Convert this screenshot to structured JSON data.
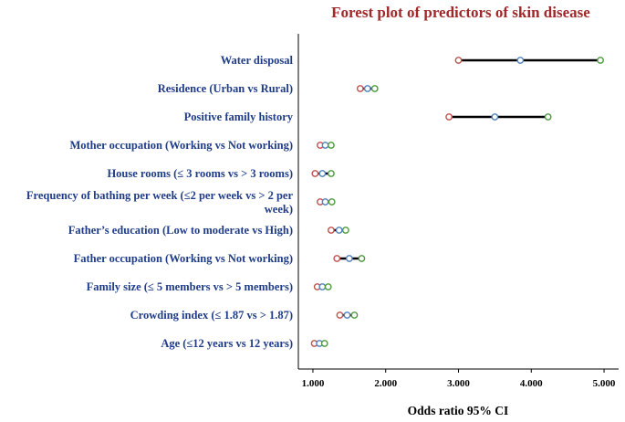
{
  "chart_data": {
    "type": "forest",
    "title": "Forest plot of predictors of skin disease",
    "xlabel": "Odds ratio 95% CI",
    "xlim": [
      0.8,
      5.2
    ],
    "xticks": [
      1.0,
      2.0,
      3.0,
      4.0,
      5.0
    ],
    "xtick_labels": [
      "1.000",
      "2.000",
      "3.000",
      "4.000",
      "5.000"
    ],
    "grid": false,
    "rows": [
      {
        "label": "Water disposal",
        "lower": 3.0,
        "or": 3.85,
        "upper": 4.95
      },
      {
        "label": "Residence (Urban vs Rural)",
        "lower": 1.65,
        "or": 1.75,
        "upper": 1.85
      },
      {
        "label": "Positive family history",
        "lower": 2.87,
        "or": 3.5,
        "upper": 4.23
      },
      {
        "label": "Mother occupation (Working vs Not working)",
        "lower": 1.1,
        "or": 1.17,
        "upper": 1.25
      },
      {
        "label": "House rooms (≤ 3 rooms vs > 3 rooms)",
        "lower": 1.03,
        "or": 1.13,
        "upper": 1.25
      },
      {
        "label": "Frequency of bathing per week (≤2 per week vs  > 2 per\nweek)",
        "lower": 1.1,
        "or": 1.17,
        "upper": 1.26
      },
      {
        "label": "Father’s education (Low to moderate vs High)",
        "lower": 1.25,
        "or": 1.36,
        "upper": 1.45
      },
      {
        "label": "Father occupation (Working vs Not working)",
        "lower": 1.33,
        "or": 1.5,
        "upper": 1.67
      },
      {
        "label": "Family size (≤ 5 members vs > 5 members)",
        "lower": 1.06,
        "or": 1.13,
        "upper": 1.21
      },
      {
        "label": "Crowding index (≤ 1.87 vs > 1.87)",
        "lower": 1.37,
        "or": 1.47,
        "upper": 1.57
      },
      {
        "label": "Age (≤12 years vs 12 years)",
        "lower": 1.02,
        "or": 1.09,
        "upper": 1.16
      }
    ],
    "colors": {
      "lower": "#c0504d",
      "or": "#4f81bd",
      "upper": "#4a9a3a",
      "line": "#000000",
      "title": "#a0282a",
      "label": "#1f3c88"
    }
  }
}
